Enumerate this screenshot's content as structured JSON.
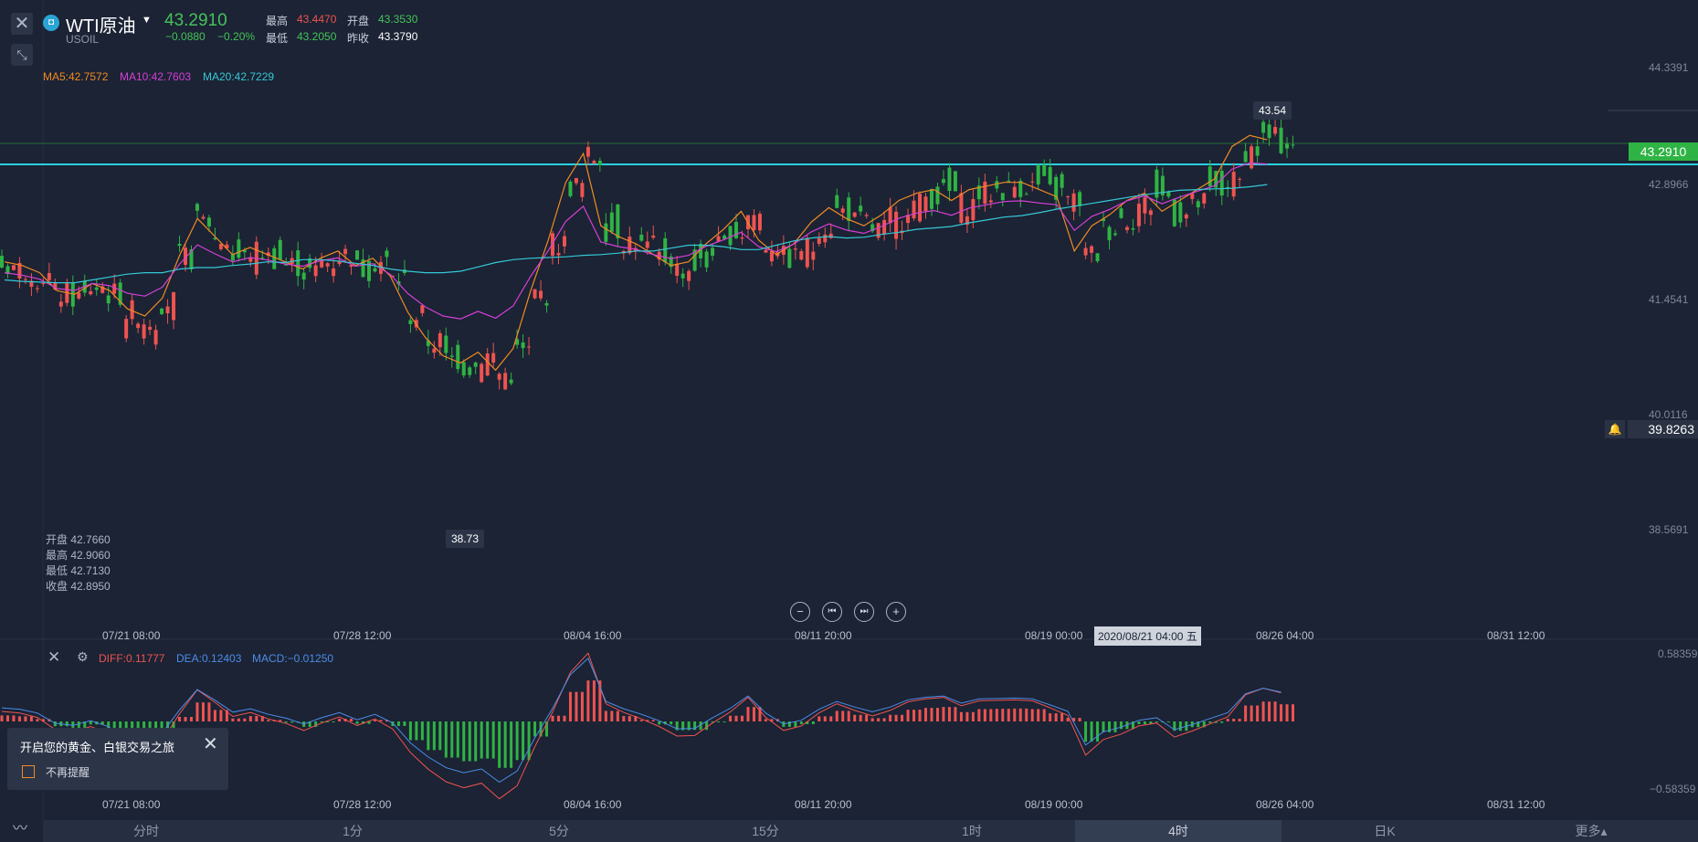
{
  "header": {
    "symbol_icon": "instrument-icon",
    "symbol_name": "WTI原油",
    "symbol_code": "USOIL",
    "last_price": "43.2910",
    "change": "−0.0880",
    "change_pct": "−0.20%",
    "high_label": "最高",
    "high_value": "43.4470",
    "open_label": "开盘",
    "open_value": "43.3530",
    "low_label": "最低",
    "low_value": "43.2050",
    "prev_close_label": "昨收",
    "prev_close_value": "43.3790"
  },
  "ma_legend": {
    "ma5": "MA5:42.7572",
    "ma10": "MA10:42.7603",
    "ma20": "MA20:42.7229"
  },
  "price_axis": [
    "44.3391",
    "42.8966",
    "41.4541",
    "40.0116",
    "38.5691"
  ],
  "current_price_tag": "43.2910",
  "alert_price_tag": "39.8263",
  "high_callout": "43.54",
  "low_callout": "38.73",
  "ohlc_box": {
    "open": "开盘 42.7660",
    "high": "最高 42.9060",
    "low": "最低 42.7130",
    "close": "收盘 42.8950"
  },
  "time_axis": [
    "07/21 08:00",
    "07/28 12:00",
    "08/04 16:00",
    "08/11 20:00",
    "08/19 00:00",
    "08/26 04:00",
    "08/31 12:00"
  ],
  "hover_time": "2020/08/21 04:00 五",
  "nav_buttons": {
    "zoom_out": "−",
    "prev": "⏮",
    "next": "⏭",
    "zoom_in": "+"
  },
  "macd": {
    "diff": "DIFF:0.11777",
    "dea": "DEA:0.12403",
    "macd": "MACD:−0.01250",
    "axis_top": "0.58359",
    "axis_bottom": "−0.58359"
  },
  "promo": {
    "title": "开启您的黄金、白银交易之旅",
    "checkbox_label": "不再提醒"
  },
  "tabs": [
    "分时",
    "1分",
    "5分",
    "15分",
    "1时",
    "4时",
    "日K",
    "更多▴"
  ],
  "active_tab": "4时",
  "colors": {
    "background": "#1b2334",
    "up": "#ef5350",
    "down": "#2fb344",
    "ma5": "#f08a24",
    "ma10": "#d63fd6",
    "ma20": "#36c8d6",
    "diff": "#ef5350",
    "dea": "#4d8ce8"
  },
  "chart_data": {
    "type": "candlestick",
    "title": "",
    "ylim": [
      37.84,
      44.34
    ],
    "x": [
      "07/21 08:00",
      "07/28 12:00",
      "08/04 16:00",
      "08/11 20:00",
      "08/19 00:00",
      "08/26 04:00"
    ],
    "ma20_close": [
      41.4,
      41.38,
      41.37,
      41.36,
      41.36,
      41.4,
      41.44,
      41.48,
      41.5,
      41.5,
      41.55,
      41.57,
      41.57,
      41.6,
      41.62,
      41.65,
      41.64,
      41.68,
      41.68,
      41.66,
      41.63,
      41.6,
      41.55,
      41.52,
      41.5,
      41.5,
      41.52,
      41.58,
      41.64,
      41.68,
      41.7,
      41.71,
      41.72,
      41.74,
      41.75,
      41.77,
      41.8,
      41.8,
      41.84,
      41.88,
      41.88,
      41.86,
      41.82,
      41.82,
      41.88,
      41.94,
      41.98,
      42.0,
      41.98,
      41.99,
      42.03,
      42.06,
      42.1,
      42.12,
      42.14,
      42.19,
      42.23,
      42.27,
      42.29,
      42.33,
      42.38,
      42.42,
      42.46,
      42.5,
      42.54,
      42.58,
      42.61,
      42.64,
      42.65,
      42.66,
      42.67,
      42.69,
      42.72
    ],
    "annotations": {
      "high": 43.54,
      "low": 38.73,
      "horizontal_line": 43.0
    }
  }
}
